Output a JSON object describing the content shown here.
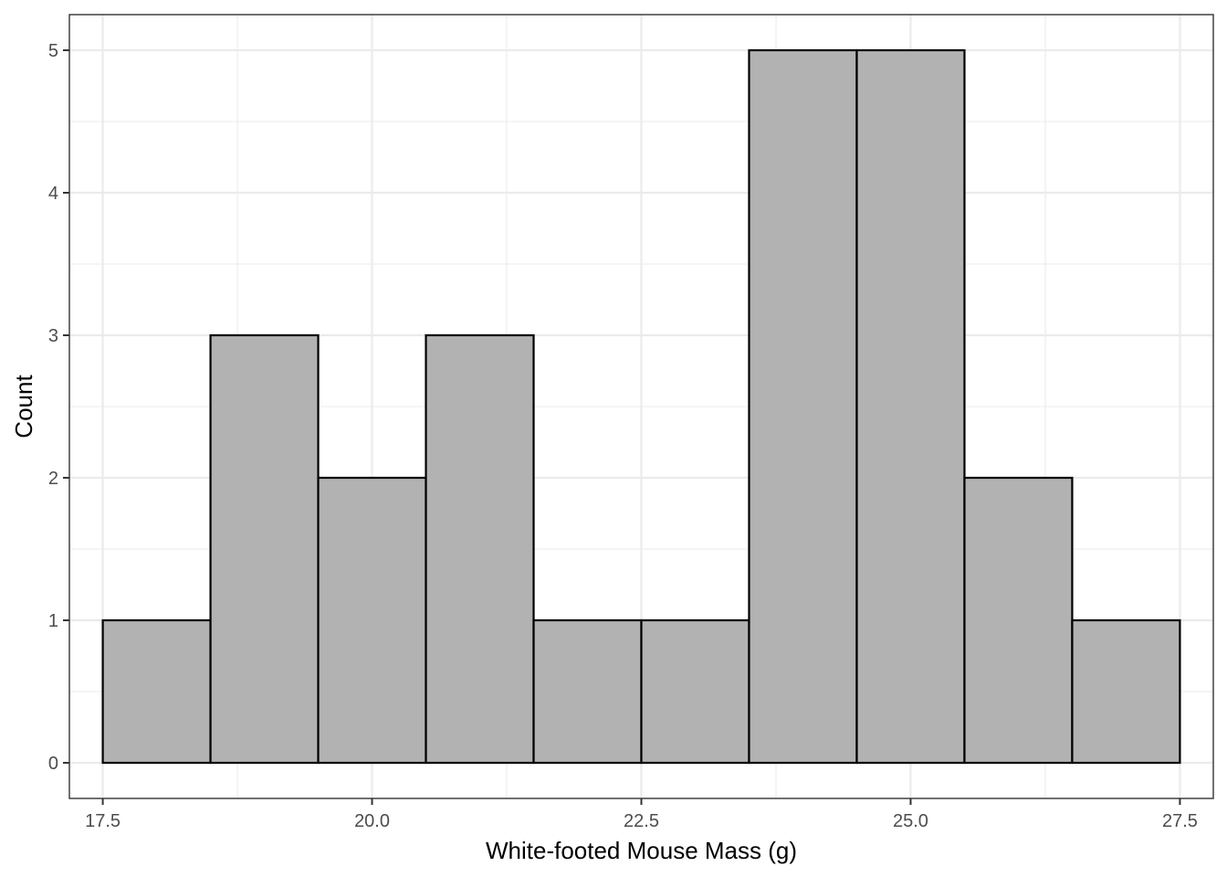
{
  "chart_data": {
    "type": "bar",
    "subtype": "histogram",
    "xlabel": "White-footed Mouse Mass (g)",
    "ylabel": "Count",
    "xlim": [
      17.19,
      27.81
    ],
    "ylim": [
      -0.25,
      5.25
    ],
    "x_ticks": [
      17.5,
      20.0,
      22.5,
      25.0,
      27.5
    ],
    "x_tick_labels": [
      "17.5",
      "20.0",
      "22.5",
      "25.0",
      "27.5"
    ],
    "y_ticks": [
      0,
      1,
      2,
      3,
      4,
      5
    ],
    "y_tick_labels": [
      "0",
      "1",
      "2",
      "3",
      "4",
      "5"
    ],
    "bins": [
      {
        "start": 17.5,
        "end": 18.5,
        "count": 1
      },
      {
        "start": 18.5,
        "end": 19.5,
        "count": 3
      },
      {
        "start": 19.5,
        "end": 20.5,
        "count": 2
      },
      {
        "start": 20.5,
        "end": 21.5,
        "count": 3
      },
      {
        "start": 21.5,
        "end": 22.5,
        "count": 1
      },
      {
        "start": 22.5,
        "end": 23.5,
        "count": 1
      },
      {
        "start": 23.5,
        "end": 24.5,
        "count": 5
      },
      {
        "start": 24.5,
        "end": 25.5,
        "count": 5
      },
      {
        "start": 25.5,
        "end": 26.5,
        "count": 2
      },
      {
        "start": 26.5,
        "end": 27.5,
        "count": 1
      }
    ],
    "grid": true,
    "bar_fill": "#b2b2b2",
    "bar_outline": "#000000"
  }
}
